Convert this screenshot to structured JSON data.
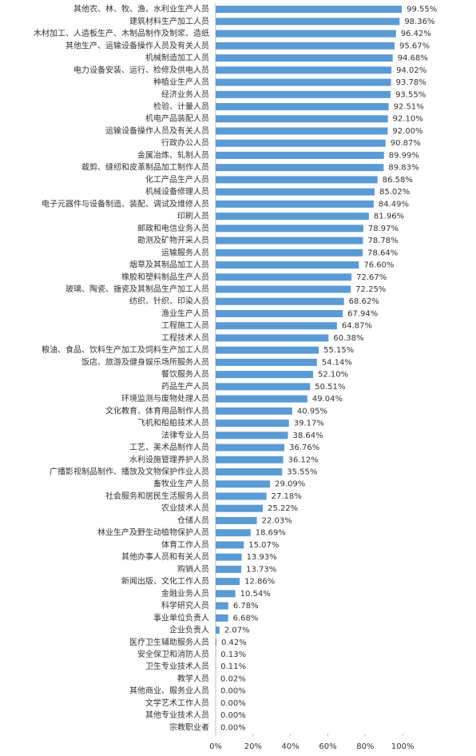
{
  "chart_data": {
    "type": "bar",
    "orientation": "horizontal",
    "color": "#5b9bd5",
    "categories": [
      "其他农、林、牧、渔、水利业生产人员",
      "建筑材料生产加工人员",
      "木材加工、人造板生产、木制品制作及制浆、造纸",
      "其他生产、运输设备操作人员及有关人员",
      "机械制造加工人员",
      "电力设备安装、运行、检修及供电人员",
      "种植业生产人员",
      "经济业务人员",
      "检验、计量人员",
      "机电产品装配人员",
      "运输设备操作人员及有关人员",
      "行政办公人员",
      "金属冶炼、轧制人员",
      "裁剪、缝纫和皮革制品加工制作人员",
      "化工产品生产人员",
      "机械设备修理人员",
      "电子元器件与设备制造、装配、调试及维修人员",
      "印刷人员",
      "邮政和电信业务人员",
      "勘测及矿物开采人员",
      "运输服务人员",
      "烟草及其制品加工人员",
      "橡胶和塑料制品生产人员",
      "玻璃、陶瓷、搪瓷及其制品生产加工人员",
      "纺织、针织、印染人员",
      "渔业生产人员",
      "工程施工人员",
      "工程技术人员",
      "粮油、食品、饮料生产加工及饲料生产加工人员",
      "饭店、旅游及健身娱乐场所服务人员",
      "餐饮服务人员",
      "药品生产人员",
      "环境监测与废物处理人员",
      "文化教育、体育用品制作人员",
      "飞机和船舶技术人员",
      "法律专业人员",
      "工艺、美术品制作人员",
      "水利设施管理养护人员",
      "广播影视制品制作、播放及文物保护作业人员",
      "畜牧业生产人员",
      "社会服务和居民生活服务人员",
      "农业技术人员",
      "仓储人员",
      "林业生产及野生动植物保护人员",
      "体育工作人员",
      "其他办事人员和有关人员",
      "购销人员",
      "新闻出版、文化工作人员",
      "金融业务人员",
      "科学研究人员",
      "事业单位负责人",
      "企业负责人",
      "医疗卫生辅助服务人员",
      "安全保卫和消防人员",
      "卫生专业技术人员",
      "教学人员",
      "其他商业、服务业人员",
      "文学艺术工作人员",
      "其他专业技术人员",
      "宗教职业者"
    ],
    "values": [
      99.55,
      98.36,
      96.42,
      95.67,
      94.68,
      94.02,
      93.78,
      93.55,
      92.51,
      92.1,
      92.0,
      90.87,
      89.99,
      89.83,
      86.58,
      85.02,
      84.49,
      81.96,
      78.97,
      78.78,
      78.64,
      76.6,
      72.67,
      72.25,
      68.62,
      67.94,
      64.87,
      60.38,
      55.15,
      54.14,
      52.1,
      50.51,
      49.04,
      40.95,
      39.17,
      38.64,
      36.76,
      36.12,
      35.55,
      29.09,
      27.18,
      25.22,
      22.03,
      18.69,
      15.07,
      13.93,
      13.73,
      12.86,
      10.54,
      6.78,
      6.68,
      2.07,
      0.42,
      0.13,
      0.11,
      0.02,
      0,
      0,
      0,
      0
    ],
    "value_labels": [
      "99.55%",
      "98.36%",
      "96.42%",
      "95.67%",
      "94.68%",
      "94.02%",
      "93.78%",
      "93.55%",
      "92.51%",
      "92.10%",
      "92.00%",
      "90.87%",
      "89.99%",
      "89.83%",
      "86.58%",
      "85.02%",
      "84.49%",
      "81.96%",
      "78.97%",
      "78.78%",
      "78.64%",
      "76.60%",
      "72.67%",
      "72.25%",
      "68.62%",
      "67.94%",
      "64.87%",
      "60.38%",
      "55.15%",
      "54.14%",
      "52.10%",
      "50.51%",
      "49.04%",
      "40.95%",
      "39.17%",
      "38.64%",
      "36.76%",
      "36.12%",
      "35.55%",
      "29.09%",
      "27.18%",
      "25.22%",
      "22.03%",
      "18.69%",
      "15.07%",
      "13.93%",
      "13.73%",
      "12.86%",
      "10.54%",
      "6.78%",
      "6.68%",
      "2.07%",
      "0.42%",
      "0.13%",
      "0.11%",
      "0.02%",
      "0.00%",
      "0.00%",
      "0.00%",
      "0.00%"
    ],
    "xlim": [
      0,
      120
    ],
    "xticks": [
      {
        "value": 0,
        "label": "0%"
      },
      {
        "value": 20,
        "label": "20%"
      },
      {
        "value": 40,
        "label": "40%"
      },
      {
        "value": 60,
        "label": "60%"
      },
      {
        "value": 80,
        "label": "80%"
      },
      {
        "value": 100,
        "label": "100%"
      }
    ]
  }
}
